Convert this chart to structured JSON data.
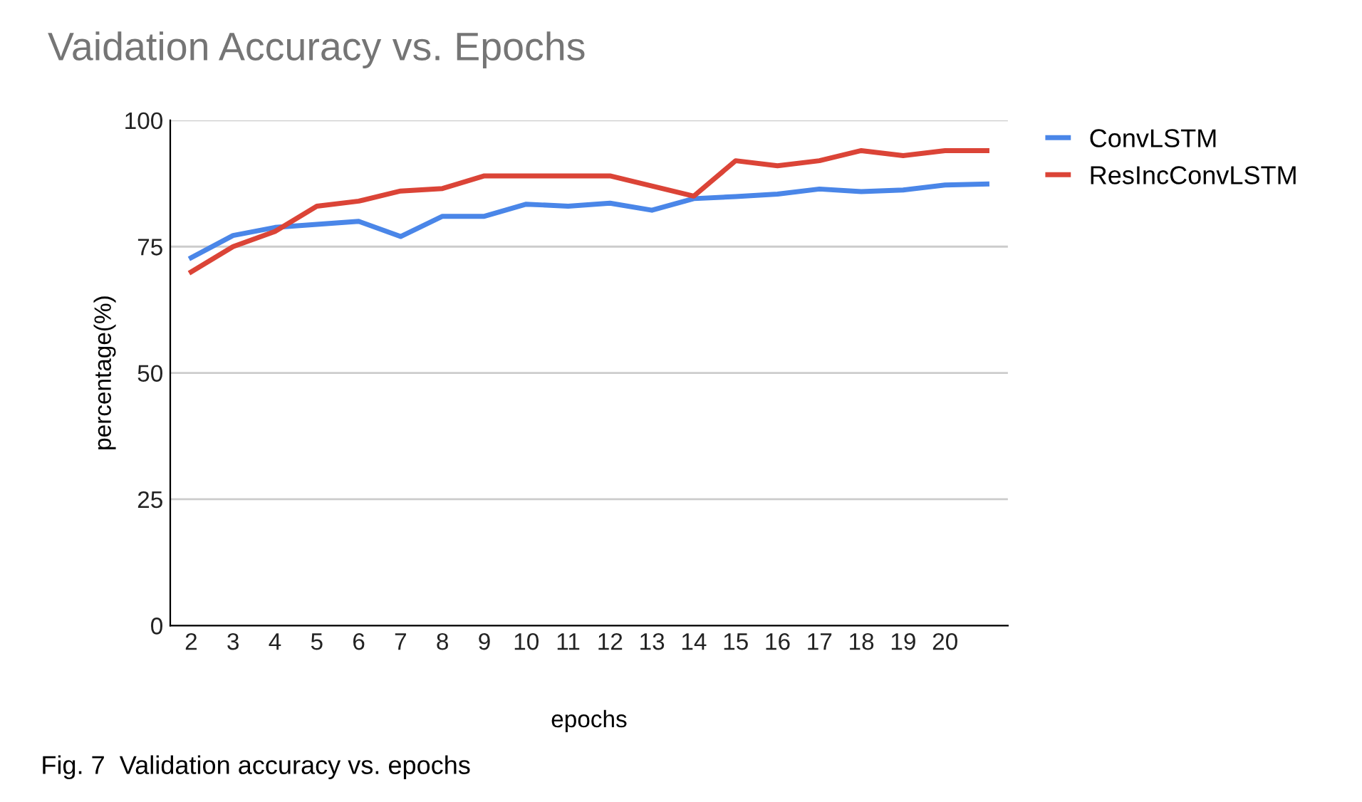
{
  "chart_data": {
    "type": "line",
    "title": "Vaidation Accuracy vs. Epochs",
    "xlabel": "epochs",
    "ylabel": "percentage(%)",
    "categories": [
      "2",
      "3",
      "4",
      "5",
      "6",
      "7",
      "8",
      "9",
      "10",
      "11",
      "12",
      "13",
      "14",
      "15",
      "16",
      "17",
      "18",
      "19",
      "20",
      null
    ],
    "series": [
      {
        "name": "ConvLSTM",
        "color": "#4a86e8",
        "values": [
          72.8,
          77.2,
          78.8,
          79.4,
          80,
          77,
          81,
          81,
          83.4,
          83,
          83.6,
          82.2,
          84.5,
          84.9,
          85.4,
          86.4,
          85.9,
          86.2,
          87.2,
          87.4
        ]
      },
      {
        "name": "ResIncConvLSTM",
        "color": "#db4437",
        "values": [
          70,
          75,
          78,
          83,
          84,
          86,
          86.5,
          89,
          89,
          89,
          89,
          87,
          85,
          92,
          91,
          92,
          94,
          93,
          94,
          94
        ]
      }
    ],
    "ylim": [
      0,
      100
    ],
    "yticks": [
      0,
      25,
      50,
      75,
      100
    ],
    "grid": "y",
    "legend": "top right",
    "marker": "none",
    "line_style": "solid",
    "annotations": [
      "Fig. 7  Validation accuracy vs. epochs"
    ]
  }
}
